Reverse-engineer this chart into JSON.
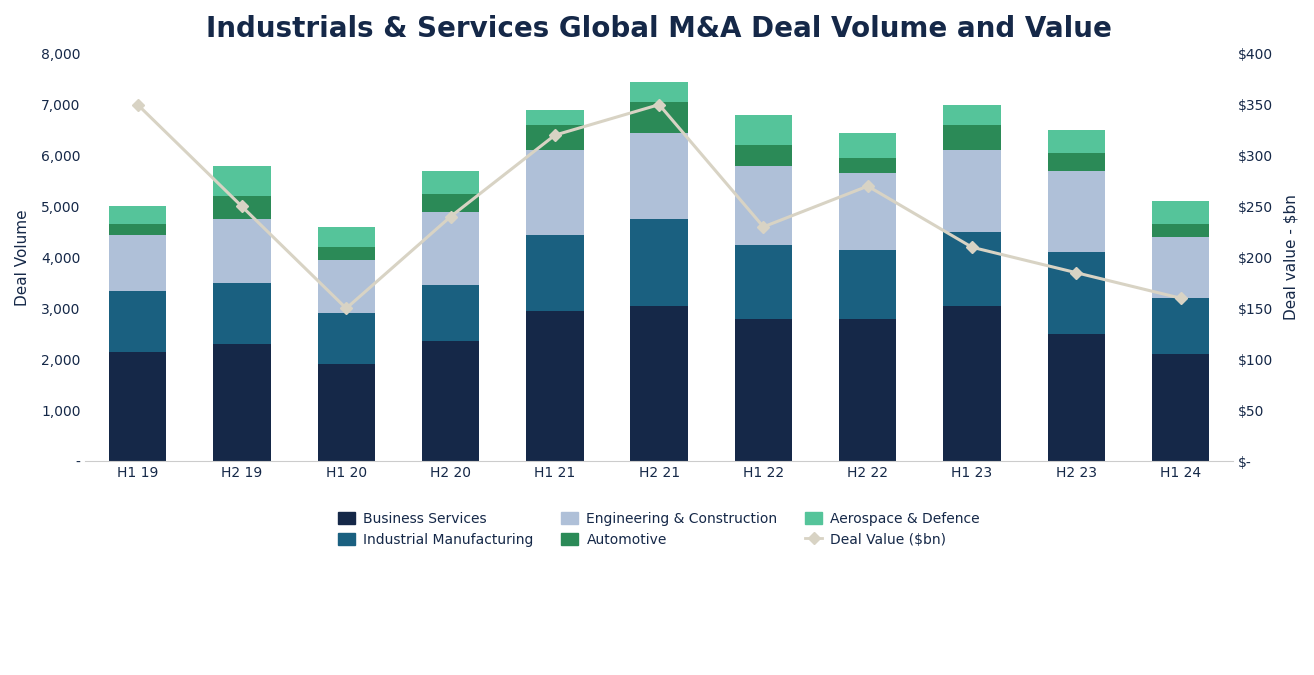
{
  "categories": [
    "H1 19",
    "H2 19",
    "H1 20",
    "H2 20",
    "H1 21",
    "H2 21",
    "H1 22",
    "H2 22",
    "H1 23",
    "H2 23",
    "H1 24"
  ],
  "business_services": [
    2150,
    2300,
    1900,
    2350,
    2950,
    3050,
    2800,
    2800,
    3050,
    2500,
    2100
  ],
  "industrial_manufacturing": [
    1200,
    1200,
    1000,
    1100,
    1500,
    1700,
    1450,
    1350,
    1450,
    1600,
    1100
  ],
  "engineering_construction": [
    1100,
    1250,
    1050,
    1450,
    1650,
    1700,
    1550,
    1500,
    1600,
    1600,
    1200
  ],
  "automotive": [
    200,
    450,
    250,
    350,
    500,
    600,
    400,
    300,
    500,
    350,
    250
  ],
  "aerospace_defence": [
    350,
    600,
    400,
    450,
    300,
    400,
    600,
    500,
    400,
    450,
    450
  ],
  "deal_value": [
    350,
    250,
    150,
    240,
    320,
    350,
    230,
    270,
    210,
    185,
    160
  ],
  "colors": {
    "business_services": "#152848",
    "industrial_manufacturing": "#1a6080",
    "engineering_construction": "#afc0d8",
    "automotive": "#2b8a57",
    "aerospace_defence": "#55c49a",
    "deal_value_line": "#d8d3c4"
  },
  "title": "Industrials & Services Global M&A Deal Volume and Value",
  "ylabel_left": "Deal Volume",
  "ylabel_right": "Deal value - $bn",
  "ylim_left": [
    0,
    8000
  ],
  "ylim_right": [
    0,
    400
  ],
  "yticks_left": [
    0,
    1000,
    2000,
    3000,
    4000,
    5000,
    6000,
    7000,
    8000
  ],
  "yticks_right": [
    0,
    50,
    100,
    150,
    200,
    250,
    300,
    350,
    400
  ],
  "ytick_labels_left": [
    "-",
    "1,000",
    "2,000",
    "3,000",
    "4,000",
    "5,000",
    "6,000",
    "7,000",
    "8,000"
  ],
  "ytick_labels_right": [
    "$-",
    "$50",
    "$100",
    "$150",
    "$200",
    "$250",
    "$300",
    "$350",
    "$400"
  ],
  "background_color": "#ffffff",
  "title_color": "#152848",
  "axis_color": "#152848",
  "title_fontsize": 20,
  "label_fontsize": 11,
  "tick_fontsize": 10,
  "legend_fontsize": 10
}
